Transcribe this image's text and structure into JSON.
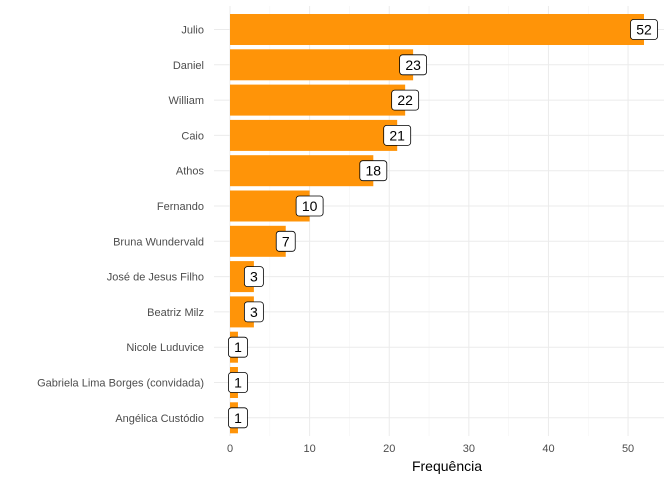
{
  "chart_data": {
    "type": "bar",
    "orientation": "horizontal",
    "categories": [
      "Julio",
      "Daniel",
      "William",
      "Caio",
      "Athos",
      "Fernando",
      "Bruna Wundervald",
      "José de Jesus Filho",
      "Beatriz Milz",
      "Nicole Luduvice",
      "Gabriela Lima Borges (convidada)",
      "Angélica Custódio"
    ],
    "values": [
      52,
      23,
      22,
      21,
      18,
      10,
      7,
      3,
      3,
      1,
      1,
      1
    ],
    "xlabel": "Frequência",
    "ylabel": "",
    "xlim": [
      0,
      54
    ],
    "xticks": [
      0,
      10,
      20,
      30,
      40,
      50
    ],
    "bar_color": "#FF9408",
    "grid": true,
    "legend": "none"
  }
}
